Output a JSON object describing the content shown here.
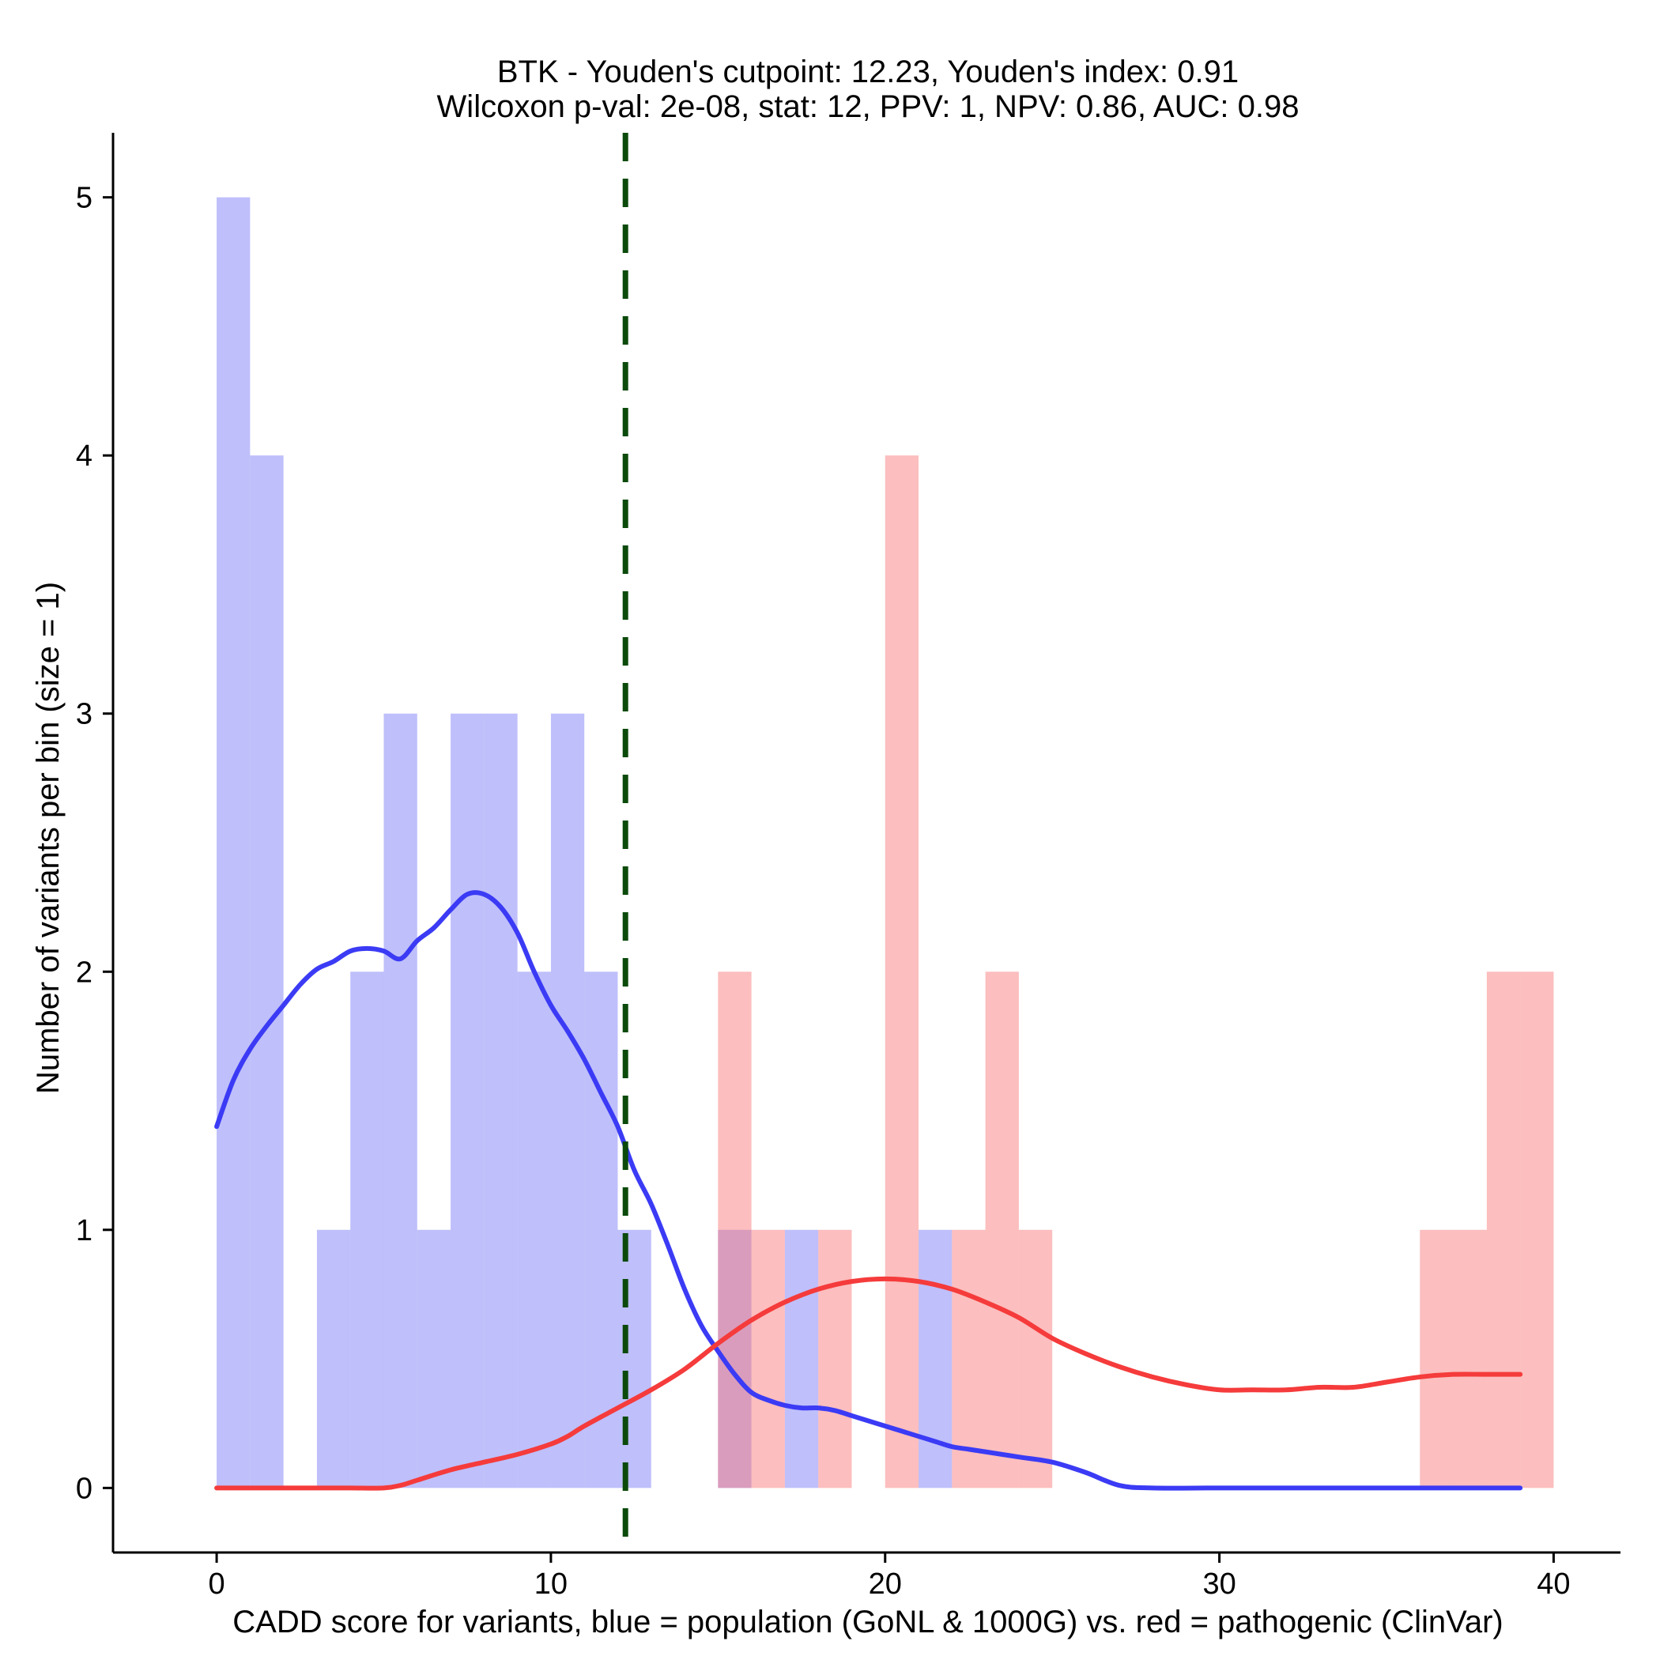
{
  "chart_data": {
    "type": "bar",
    "title_line1": "BTK - Youden's cutpoint: 12.23, Youden's index: 0.91",
    "title_line2": "Wilcoxon p-val: 2e-08, stat: 12, PPV: 1, NPV: 0.86, AUC: 0.98",
    "xlabel": "CADD score for variants, blue = population (GoNL & 1000G) vs. red = pathogenic (ClinVar)",
    "ylabel": "Number of variants per bin (size = 1)",
    "xlim": [
      -3.1,
      42
    ],
    "ylim": [
      -0.25,
      5.25
    ],
    "xticks": [
      0,
      10,
      20,
      30,
      40
    ],
    "yticks": [
      0,
      1,
      2,
      3,
      4,
      5
    ],
    "bin_size": 1,
    "cutpoint": 12.23,
    "series": [
      {
        "name": "population (GoNL & 1000G)",
        "color": "#8080f8",
        "opacity": 0.5,
        "bins": [
          {
            "x": 0,
            "count": 5
          },
          {
            "x": 1,
            "count": 4
          },
          {
            "x": 3,
            "count": 1
          },
          {
            "x": 4,
            "count": 2
          },
          {
            "x": 5,
            "count": 3
          },
          {
            "x": 6,
            "count": 1
          },
          {
            "x": 7,
            "count": 3
          },
          {
            "x": 8,
            "count": 3
          },
          {
            "x": 9,
            "count": 2
          },
          {
            "x": 10,
            "count": 3
          },
          {
            "x": 11,
            "count": 2
          },
          {
            "x": 12,
            "count": 1
          },
          {
            "x": 15,
            "count": 1
          },
          {
            "x": 17,
            "count": 1
          },
          {
            "x": 21,
            "count": 1
          }
        ],
        "density": {
          "color": "#3b3bf5",
          "x": [
            0,
            0.5,
            1,
            1.5,
            2,
            2.5,
            3,
            3.5,
            4,
            4.5,
            5,
            5.5,
            6,
            6.5,
            7,
            7.5,
            8,
            8.5,
            9,
            9.5,
            10,
            10.5,
            11,
            11.5,
            12,
            12.5,
            13,
            13.5,
            14,
            14.5,
            15,
            15.5,
            16,
            16.5,
            17,
            17.5,
            18,
            18.5,
            19,
            19.5,
            20,
            20.5,
            21,
            21.5,
            22,
            22.5,
            23,
            24,
            25,
            26,
            27,
            28,
            30,
            32,
            34,
            36,
            38,
            39
          ],
          "y": [
            1.4,
            1.58,
            1.7,
            1.79,
            1.87,
            1.95,
            2.01,
            2.04,
            2.08,
            2.09,
            2.08,
            2.05,
            2.12,
            2.17,
            2.24,
            2.3,
            2.3,
            2.25,
            2.15,
            2.0,
            1.87,
            1.77,
            1.66,
            1.53,
            1.4,
            1.23,
            1.1,
            0.94,
            0.77,
            0.63,
            0.53,
            0.44,
            0.37,
            0.34,
            0.32,
            0.31,
            0.31,
            0.3,
            0.28,
            0.26,
            0.24,
            0.22,
            0.2,
            0.18,
            0.16,
            0.15,
            0.14,
            0.12,
            0.1,
            0.06,
            0.01,
            0,
            0,
            0,
            0,
            0,
            0,
            0
          ]
        }
      },
      {
        "name": "pathogenic (ClinVar)",
        "color": "#f87878",
        "opacity": 0.48,
        "bins": [
          {
            "x": 15,
            "count": 2
          },
          {
            "x": 16,
            "count": 1
          },
          {
            "x": 18,
            "count": 1
          },
          {
            "x": 20,
            "count": 4
          },
          {
            "x": 22,
            "count": 1
          },
          {
            "x": 23,
            "count": 2
          },
          {
            "x": 24,
            "count": 1
          },
          {
            "x": 36,
            "count": 1
          },
          {
            "x": 37,
            "count": 1
          },
          {
            "x": 38,
            "count": 2
          },
          {
            "x": 39,
            "count": 2
          }
        ],
        "density": {
          "color": "#f53b3b",
          "x": [
            0,
            1,
            2,
            3,
            4,
            5,
            5.5,
            6,
            7,
            8,
            9,
            10,
            10.5,
            11,
            12,
            13,
            14,
            15,
            16,
            17,
            18,
            19,
            20,
            21,
            22,
            23,
            24,
            25,
            26,
            27,
            28,
            29,
            30,
            31,
            32,
            33,
            34,
            35,
            36,
            37,
            38,
            39
          ],
          "y": [
            0,
            0,
            0,
            0,
            0,
            0,
            0.01,
            0.03,
            0.07,
            0.1,
            0.13,
            0.17,
            0.2,
            0.24,
            0.31,
            0.38,
            0.46,
            0.56,
            0.65,
            0.72,
            0.77,
            0.8,
            0.81,
            0.8,
            0.77,
            0.72,
            0.66,
            0.58,
            0.52,
            0.47,
            0.43,
            0.4,
            0.38,
            0.38,
            0.38,
            0.39,
            0.39,
            0.41,
            0.43,
            0.44,
            0.44,
            0.44
          ]
        }
      }
    ]
  }
}
